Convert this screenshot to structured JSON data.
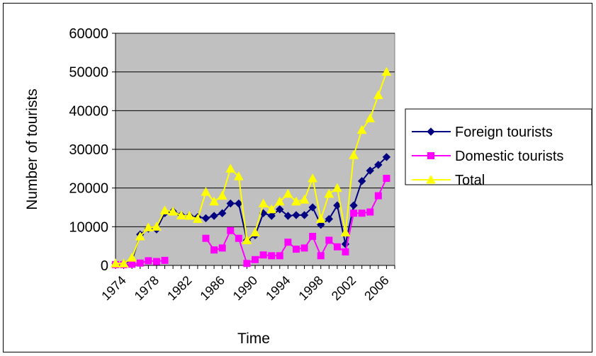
{
  "chart_data": {
    "type": "line",
    "title": "",
    "xlabel": "Time",
    "ylabel": "Number of tourists",
    "ylim": [
      0,
      60000
    ],
    "yticks": [
      0,
      10000,
      20000,
      30000,
      40000,
      50000,
      60000
    ],
    "xlim": [
      1974,
      2008
    ],
    "xticks": [
      "1974",
      "1978",
      "1982",
      "1986",
      "1990",
      "1994",
      "1998",
      "2002",
      "2006"
    ],
    "grid": "horizontal",
    "legend_position": "right",
    "plot_background": "#c0c0c0",
    "series": [
      {
        "name": "Foreign tourists",
        "color": "#000080",
        "marker": "diamond",
        "points": [
          [
            1974,
            500
          ],
          [
            1975,
            500
          ],
          [
            1976,
            1200
          ],
          [
            1977,
            8000
          ],
          [
            1978,
            9500
          ],
          [
            1979,
            9300
          ],
          [
            1980,
            13500
          ],
          [
            1981,
            14000
          ],
          [
            1982,
            13000
          ],
          [
            1983,
            12800
          ],
          [
            1984,
            12500
          ],
          [
            1985,
            12200
          ],
          [
            1986,
            12800
          ],
          [
            1987,
            13500
          ],
          [
            1988,
            16000
          ],
          [
            1989,
            16000
          ],
          [
            1990,
            6500
          ],
          [
            1991,
            7800
          ],
          [
            1992,
            13500
          ],
          [
            1993,
            12800
          ],
          [
            1994,
            14500
          ],
          [
            1995,
            12800
          ],
          [
            1996,
            13000
          ],
          [
            1997,
            13000
          ],
          [
            1998,
            15000
          ],
          [
            1999,
            10500
          ],
          [
            2000,
            12000
          ],
          [
            2001,
            15500
          ],
          [
            2002,
            5500
          ],
          [
            2003,
            15500
          ],
          [
            2004,
            21800
          ],
          [
            2005,
            24500
          ],
          [
            2006,
            26000
          ],
          [
            2007,
            28000
          ]
        ]
      },
      {
        "name": "Domestic tourists",
        "color": "#ff00ff",
        "marker": "square",
        "points": [
          [
            1974,
            200
          ],
          [
            1975,
            200
          ],
          [
            1976,
            300
          ],
          [
            1977,
            600
          ],
          [
            1978,
            1200
          ],
          [
            1979,
            1000
          ],
          [
            1980,
            1300
          ],
          [
            1985,
            7000
          ],
          [
            1986,
            4000
          ],
          [
            1987,
            4500
          ],
          [
            1988,
            9000
          ],
          [
            1989,
            7000
          ],
          [
            1990,
            500
          ],
          [
            1991,
            1500
          ],
          [
            1992,
            2700
          ],
          [
            1993,
            2500
          ],
          [
            1994,
            2500
          ],
          [
            1995,
            6000
          ],
          [
            1996,
            4200
          ],
          [
            1997,
            4500
          ],
          [
            1998,
            7500
          ],
          [
            1999,
            2500
          ],
          [
            2000,
            6500
          ],
          [
            2001,
            4800
          ],
          [
            2002,
            3500
          ],
          [
            2003,
            13500
          ],
          [
            2004,
            13500
          ],
          [
            2005,
            13800
          ],
          [
            2006,
            18000
          ],
          [
            2007,
            22500
          ]
        ]
      },
      {
        "name": "Total",
        "color": "#ffff00",
        "marker": "triangle",
        "points": [
          [
            1974,
            500
          ],
          [
            1975,
            500
          ],
          [
            1976,
            2000
          ],
          [
            1977,
            7500
          ],
          [
            1978,
            9800
          ],
          [
            1979,
            10000
          ],
          [
            1980,
            14200
          ],
          [
            1981,
            13900
          ],
          [
            1982,
            12900
          ],
          [
            1983,
            12800
          ],
          [
            1984,
            12000
          ],
          [
            1985,
            19000
          ],
          [
            1986,
            16500
          ],
          [
            1987,
            18000
          ],
          [
            1988,
            25000
          ],
          [
            1989,
            23000
          ],
          [
            1990,
            6500
          ],
          [
            1991,
            8500
          ],
          [
            1992,
            16000
          ],
          [
            1993,
            14500
          ],
          [
            1994,
            16500
          ],
          [
            1995,
            18500
          ],
          [
            1996,
            16500
          ],
          [
            1997,
            17000
          ],
          [
            1998,
            22500
          ],
          [
            1999,
            12000
          ],
          [
            2000,
            18500
          ],
          [
            2001,
            20000
          ],
          [
            2002,
            8500
          ],
          [
            2003,
            28500
          ],
          [
            2004,
            35000
          ],
          [
            2005,
            38000
          ],
          [
            2006,
            44000
          ],
          [
            2007,
            50000
          ]
        ]
      }
    ]
  }
}
